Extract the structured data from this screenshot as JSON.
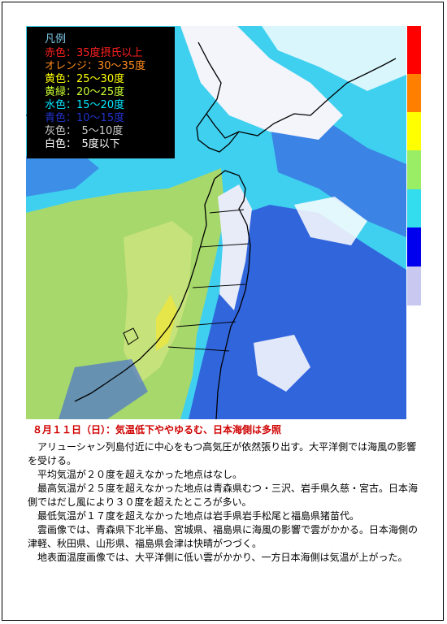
{
  "legend": {
    "title": "凡例",
    "items": [
      {
        "label": "赤色：35度摂氏以上",
        "color": "#ff2020"
      },
      {
        "label": "オレンジ：30～35度",
        "color": "#ff8c1a"
      },
      {
        "label": "黄色：25～30度",
        "color": "#ffff00"
      },
      {
        "label": "黄緑：20～25度",
        "color": "#ccff33"
      },
      {
        "label": "水色：15～20度",
        "color": "#00e5ff"
      },
      {
        "label": "青色：10～15度",
        "color": "#2233cc"
      },
      {
        "label": "灰色：　5～10度",
        "color": "#cccccc"
      },
      {
        "label": "白色：　5度以下",
        "color": "#ffffff"
      }
    ]
  },
  "colorbar": [
    {
      "color": "#ff0000",
      "level": "35度以上"
    },
    {
      "color": "#ff8000",
      "level": "30～35度"
    },
    {
      "color": "#ffff00",
      "level": "25～30度"
    },
    {
      "color": "#99ee66",
      "level": "20～25度"
    },
    {
      "color": "#33ddee",
      "level": "15～20度"
    },
    {
      "color": "#0000ee",
      "level": "10～15度"
    },
    {
      "color": "#c8c8f0",
      "level": "5～10度"
    }
  ],
  "caption": {
    "headline": "８月１１日（日）：気温低下ややゆるむ、日本海側は多照",
    "paragraphs": [
      "アリューシャン列島付近に中心をもつ高気圧が依然張り出す。大平洋側では海風の影響を受ける。",
      "平均気温が２０度を超えなかった地点はなし。",
      "最高気温が２５度を超えなかった地点は青森県むつ・三沢、岩手県久慈・宮古。日本海側ではだし風により３０度を超えたところが多い。",
      "最低気温が１７度を超えなかった地点は岩手県岩手松尾と福島県猪苗代。",
      "雲画像では、青森県下北半島、宮城県、福島県に海風の影響で雲がかかる。日本海側の津軽、秋田県、山形県、福島県会津は快晴がつづく。",
      "地表面温度画像では、大平洋側に低い雲がかかり、一方日本海側は気温が上がった。"
    ]
  }
}
